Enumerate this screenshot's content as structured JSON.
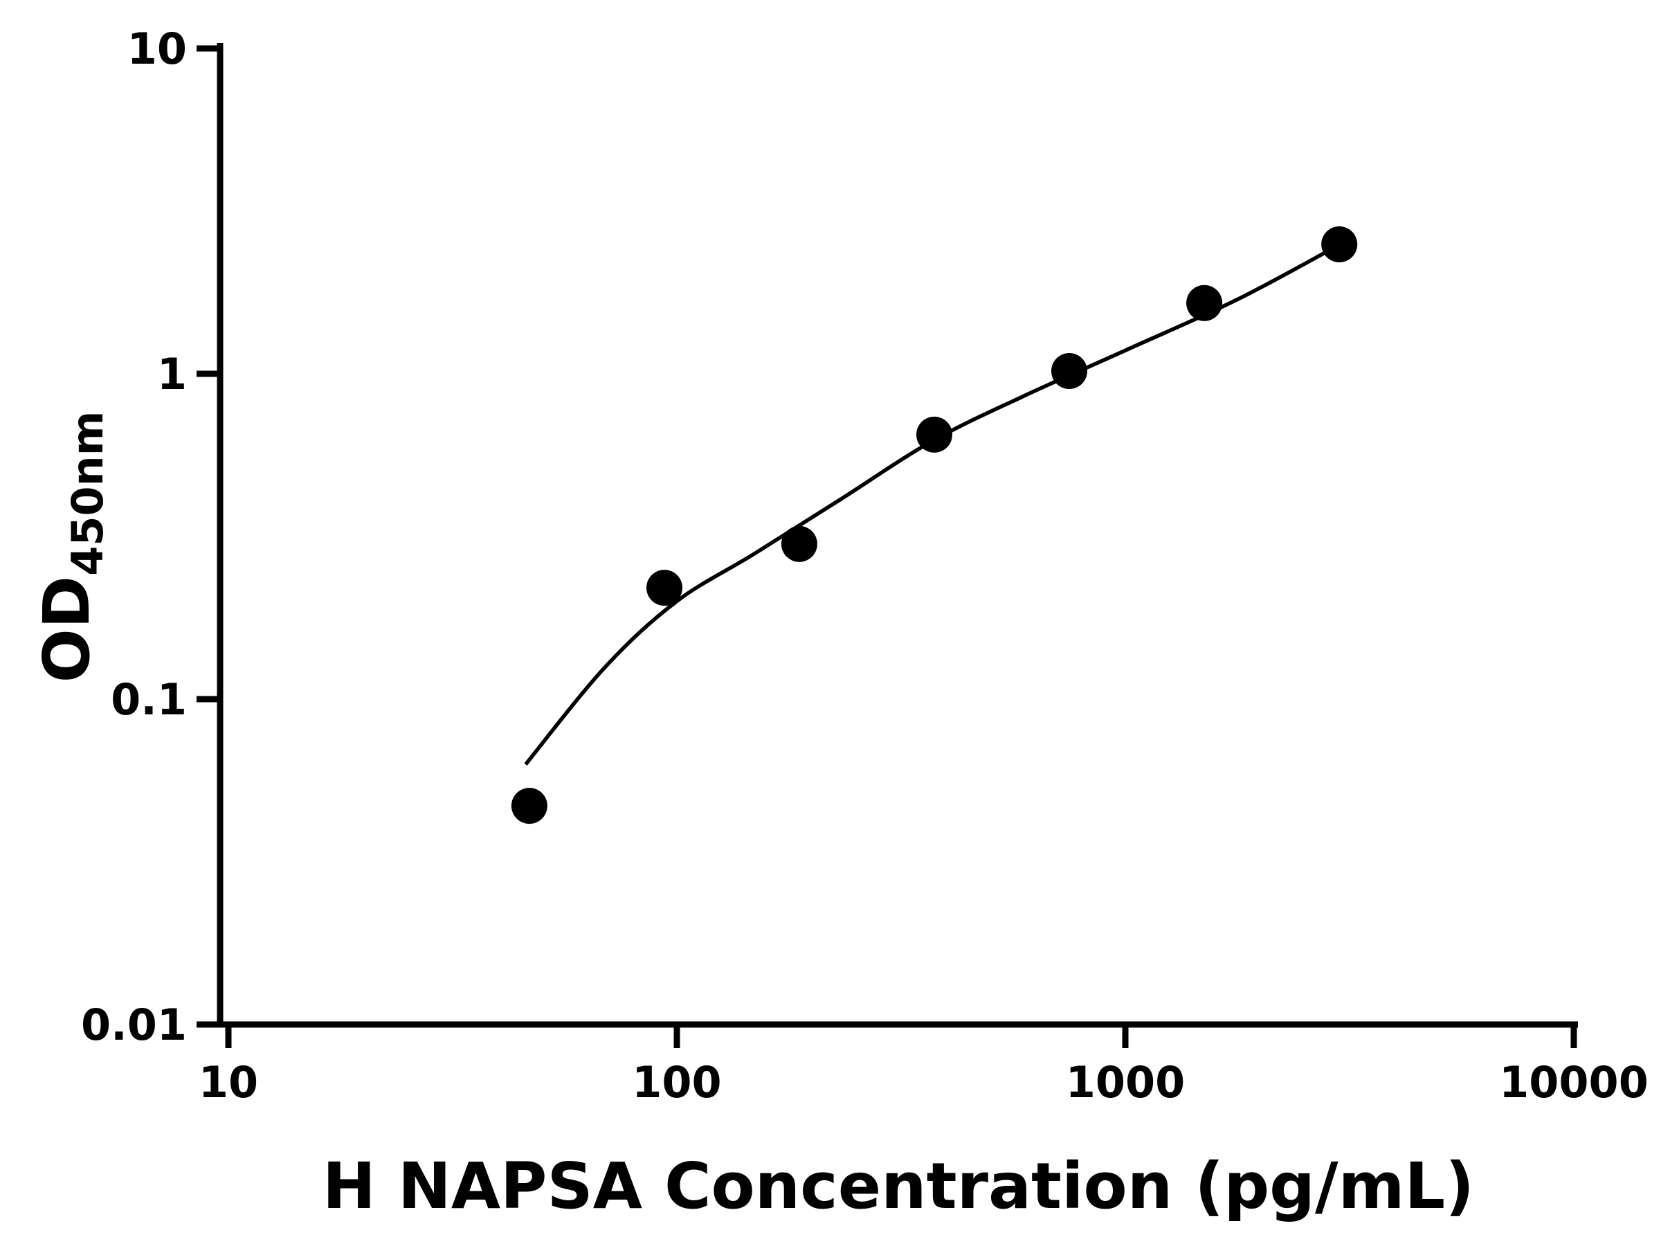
{
  "figure": {
    "background": "#ffffff"
  },
  "chart_data": {
    "type": "scatter",
    "title": "",
    "xlabel": "H NAPSA Concentration (pg/mL)",
    "ylabel_main": "OD",
    "ylabel_subscript": "450nm",
    "x_scale": "log",
    "y_scale": "log",
    "xlim": [
      10,
      10000
    ],
    "ylim": [
      0.01,
      10
    ],
    "x_tick_values": [
      10,
      100,
      1000,
      10000
    ],
    "x_tick_labels": [
      "10",
      "100",
      "1000",
      "10000"
    ],
    "y_tick_values": [
      0.01,
      0.1,
      1,
      10
    ],
    "y_tick_labels": [
      "0.01",
      "0.1",
      "1",
      "10"
    ],
    "grid": false,
    "legend": "none",
    "axis_color": "#000000",
    "marker_color": "#000000",
    "line_color": "#000000",
    "marker": "circle",
    "series": [
      {
        "name": "fitted-curve",
        "type": "line",
        "x": [
          46,
          69,
          100,
          149,
          231,
          370,
          589,
          1000,
          1774,
          2950
        ],
        "y": [
          0.063,
          0.125,
          0.2,
          0.28,
          0.41,
          0.62,
          0.85,
          1.18,
          1.69,
          2.46
        ]
      },
      {
        "name": "standard-points",
        "type": "scatter",
        "x": [
          46.9,
          93.8,
          187.5,
          375,
          750,
          1500,
          3000
        ],
        "y": [
          0.047,
          0.22,
          0.3,
          0.65,
          1.02,
          1.65,
          2.5
        ]
      }
    ]
  }
}
